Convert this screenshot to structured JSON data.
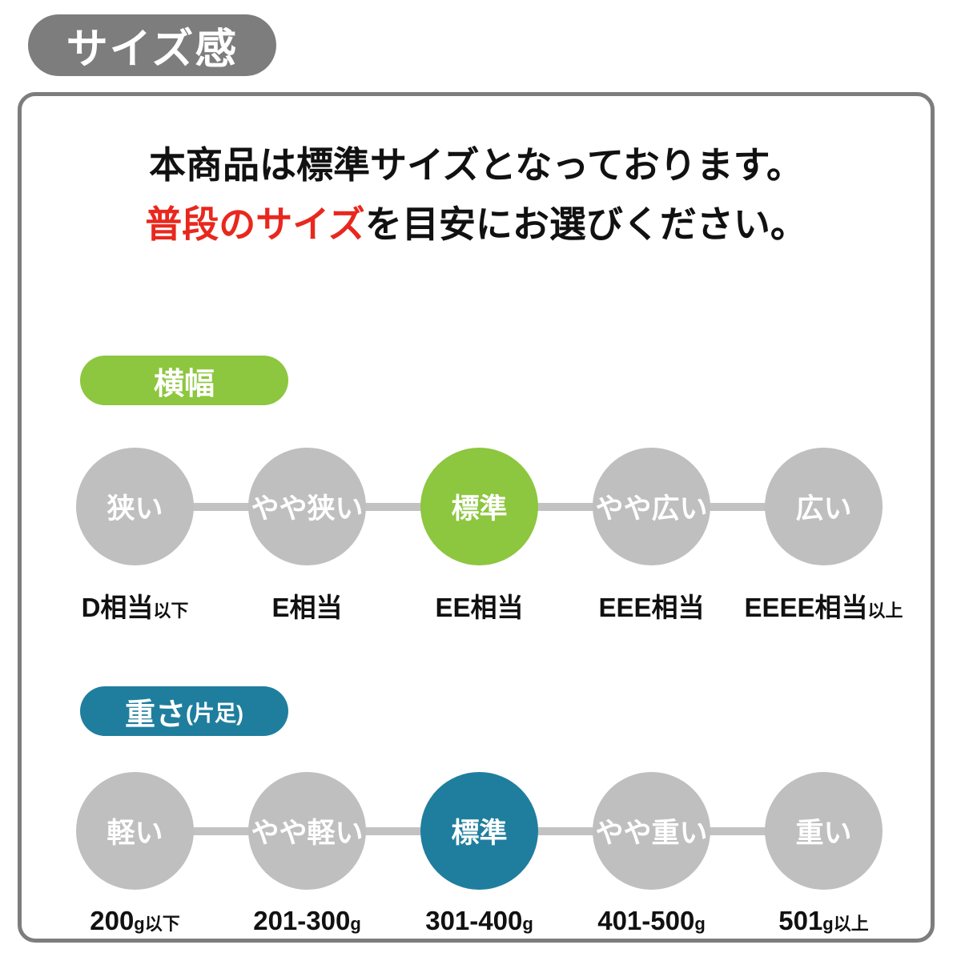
{
  "header": {
    "title": "サイズ感"
  },
  "intro": {
    "line1": "本商品は標準サイズとなっております。",
    "line2_highlight": "普段のサイズ",
    "line2_rest": "を目安にお選びください。"
  },
  "colors": {
    "header_gray": "#7d7d7d",
    "panel_border_gray": "#7d7d7d",
    "inactive_circle_gray": "#bfbfbf",
    "connector_gray": "#c2c2c2",
    "width_accent_green": "#8dc63f",
    "weight_accent_teal": "#1f7e9e",
    "highlight_red": "#e8281e"
  },
  "scales": [
    {
      "badge": "横幅",
      "badge_suffix": "",
      "active_index": 2,
      "steps": [
        {
          "circle": "狭い",
          "label": "D相当",
          "label_suffix": "以下",
          "active": false
        },
        {
          "circle": "やや狭い",
          "label": "E相当",
          "label_suffix": "",
          "active": false
        },
        {
          "circle": "標準",
          "label": "EE相当",
          "label_suffix": "",
          "active": true
        },
        {
          "circle": "やや広い",
          "label": "EEE相当",
          "label_suffix": "",
          "active": false
        },
        {
          "circle": "広い",
          "label": "EEEE相当",
          "label_suffix": "以上",
          "active": false
        }
      ]
    },
    {
      "badge": "重さ",
      "badge_suffix": "(片足)",
      "active_index": 2,
      "steps": [
        {
          "circle": "軽い",
          "label": "200",
          "label_suffix": "g以下",
          "active": false
        },
        {
          "circle": "やや軽い",
          "label": "201-300",
          "label_suffix": "g",
          "active": false
        },
        {
          "circle": "標準",
          "label": "301-400",
          "label_suffix": "g",
          "active": true
        },
        {
          "circle": "やや重い",
          "label": "401-500",
          "label_suffix": "g",
          "active": false
        },
        {
          "circle": "重い",
          "label": "501",
          "label_suffix": "g以上",
          "active": false
        }
      ]
    }
  ]
}
